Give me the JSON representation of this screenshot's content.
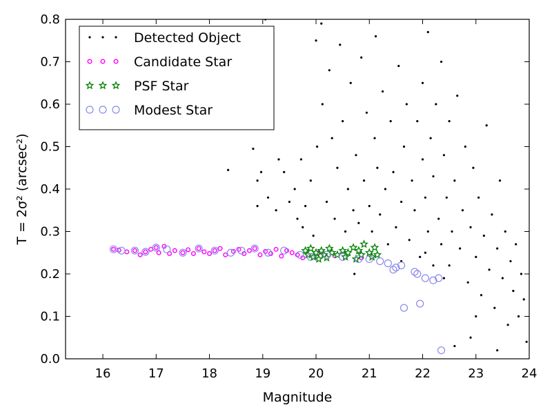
{
  "chart_data": {
    "type": "scatter",
    "title": "",
    "xlabel": "Magnitude",
    "ylabel": "T = 2σ² (arcsec²)",
    "xlim": [
      15.3,
      24.0
    ],
    "ylim": [
      0.0,
      0.8
    ],
    "x_ticks": [
      16,
      17,
      18,
      19,
      20,
      21,
      22,
      23,
      24
    ],
    "y_ticks": [
      0.0,
      0.1,
      0.2,
      0.3,
      0.4,
      0.5,
      0.6,
      0.7,
      0.8
    ],
    "grid": false,
    "legend_position": "top-left",
    "series": [
      {
        "name": "Detected Object",
        "marker": "dot",
        "color": "#000000",
        "points": [
          [
            18.35,
            0.445
          ],
          [
            18.82,
            0.495
          ],
          [
            18.9,
            0.42
          ],
          [
            18.9,
            0.36
          ],
          [
            18.97,
            0.44
          ],
          [
            19.05,
            0.8
          ],
          [
            19.1,
            0.38
          ],
          [
            19.25,
            0.35
          ],
          [
            19.3,
            0.47
          ],
          [
            19.4,
            0.44
          ],
          [
            19.5,
            0.37
          ],
          [
            19.6,
            0.4
          ],
          [
            19.65,
            0.33
          ],
          [
            19.72,
            0.47
          ],
          [
            19.75,
            0.31
          ],
          [
            19.8,
            0.36
          ],
          [
            19.9,
            0.42
          ],
          [
            19.95,
            0.29
          ],
          [
            20.0,
            0.75
          ],
          [
            20.02,
            0.5
          ],
          [
            20.1,
            0.79
          ],
          [
            20.12,
            0.6
          ],
          [
            20.2,
            0.37
          ],
          [
            20.25,
            0.68
          ],
          [
            20.3,
            0.52
          ],
          [
            20.35,
            0.33
          ],
          [
            20.4,
            0.45
          ],
          [
            20.45,
            0.74
          ],
          [
            20.5,
            0.56
          ],
          [
            20.55,
            0.3
          ],
          [
            20.6,
            0.4
          ],
          [
            20.65,
            0.65
          ],
          [
            20.7,
            0.35
          ],
          [
            20.72,
            0.2
          ],
          [
            20.75,
            0.48
          ],
          [
            20.8,
            0.32
          ],
          [
            20.85,
            0.71
          ],
          [
            20.9,
            0.42
          ],
          [
            20.95,
            0.58
          ],
          [
            21.0,
            0.36
          ],
          [
            21.05,
            0.3
          ],
          [
            21.1,
            0.52
          ],
          [
            21.12,
            0.76
          ],
          [
            21.15,
            0.45
          ],
          [
            21.2,
            0.34
          ],
          [
            21.25,
            0.63
          ],
          [
            21.3,
            0.4
          ],
          [
            21.35,
            0.27
          ],
          [
            21.4,
            0.56
          ],
          [
            21.45,
            0.44
          ],
          [
            21.5,
            0.31
          ],
          [
            21.55,
            0.69
          ],
          [
            21.6,
            0.37
          ],
          [
            21.65,
            0.5
          ],
          [
            21.7,
            0.6
          ],
          [
            21.75,
            0.28
          ],
          [
            21.8,
            0.42
          ],
          [
            21.85,
            0.35
          ],
          [
            21.9,
            0.56
          ],
          [
            21.95,
            0.24
          ],
          [
            22.0,
            0.47
          ],
          [
            22.0,
            0.65
          ],
          [
            22.05,
            0.38
          ],
          [
            22.1,
            0.3
          ],
          [
            22.1,
            0.77
          ],
          [
            22.15,
            0.52
          ],
          [
            22.2,
            0.22
          ],
          [
            22.2,
            0.43
          ],
          [
            22.25,
            0.6
          ],
          [
            22.3,
            0.33
          ],
          [
            22.35,
            0.7
          ],
          [
            22.35,
            0.27
          ],
          [
            22.4,
            0.48
          ],
          [
            22.45,
            0.38
          ],
          [
            22.5,
            0.56
          ],
          [
            22.5,
            0.22
          ],
          [
            22.55,
            0.3
          ],
          [
            22.6,
            0.42
          ],
          [
            22.65,
            0.62
          ],
          [
            22.7,
            0.26
          ],
          [
            22.75,
            0.35
          ],
          [
            22.8,
            0.5
          ],
          [
            22.85,
            0.18
          ],
          [
            22.9,
            0.31
          ],
          [
            22.95,
            0.45
          ],
          [
            23.0,
            0.24
          ],
          [
            23.05,
            0.38
          ],
          [
            23.1,
            0.15
          ],
          [
            23.15,
            0.29
          ],
          [
            23.2,
            0.55
          ],
          [
            23.25,
            0.21
          ],
          [
            23.3,
            0.34
          ],
          [
            23.35,
            0.12
          ],
          [
            23.4,
            0.26
          ],
          [
            23.45,
            0.42
          ],
          [
            23.5,
            0.19
          ],
          [
            23.55,
            0.3
          ],
          [
            23.6,
            0.08
          ],
          [
            23.65,
            0.23
          ],
          [
            23.7,
            0.16
          ],
          [
            23.75,
            0.27
          ],
          [
            23.8,
            0.1
          ],
          [
            23.85,
            0.2
          ],
          [
            23.9,
            0.14
          ],
          [
            23.95,
            0.04
          ],
          [
            22.9,
            0.05
          ],
          [
            22.6,
            0.03
          ],
          [
            23.4,
            0.02
          ],
          [
            22.05,
            0.25
          ],
          [
            21.6,
            0.23
          ],
          [
            22.4,
            0.19
          ],
          [
            23.0,
            0.1
          ]
        ]
      },
      {
        "name": "Candidate Star",
        "marker": "ring",
        "color": "#ff00ff",
        "points": [
          [
            16.2,
            0.258
          ],
          [
            16.3,
            0.256
          ],
          [
            16.45,
            0.252
          ],
          [
            16.6,
            0.255
          ],
          [
            16.7,
            0.245
          ],
          [
            16.8,
            0.252
          ],
          [
            16.9,
            0.258
          ],
          [
            17.0,
            0.262
          ],
          [
            17.05,
            0.25
          ],
          [
            17.15,
            0.265
          ],
          [
            17.25,
            0.248
          ],
          [
            17.35,
            0.255
          ],
          [
            17.5,
            0.25
          ],
          [
            17.6,
            0.257
          ],
          [
            17.7,
            0.248
          ],
          [
            17.8,
            0.26
          ],
          [
            17.9,
            0.252
          ],
          [
            18.0,
            0.248
          ],
          [
            18.1,
            0.255
          ],
          [
            18.2,
            0.26
          ],
          [
            18.3,
            0.245
          ],
          [
            18.45,
            0.253
          ],
          [
            18.55,
            0.258
          ],
          [
            18.65,
            0.248
          ],
          [
            18.75,
            0.255
          ],
          [
            18.85,
            0.26
          ],
          [
            18.95,
            0.245
          ],
          [
            19.05,
            0.253
          ],
          [
            19.15,
            0.248
          ],
          [
            19.25,
            0.258
          ],
          [
            19.35,
            0.242
          ],
          [
            19.45,
            0.255
          ],
          [
            19.55,
            0.25
          ],
          [
            19.65,
            0.245
          ],
          [
            19.75,
            0.238
          ],
          [
            20.05,
            0.25
          ],
          [
            20.35,
            0.243
          ],
          [
            20.85,
            0.238
          ]
        ]
      },
      {
        "name": "PSF Star",
        "marker": "star",
        "color": "#008000",
        "points": [
          [
            19.8,
            0.255
          ],
          [
            19.85,
            0.245
          ],
          [
            19.9,
            0.26
          ],
          [
            19.95,
            0.24
          ],
          [
            20.0,
            0.25
          ],
          [
            20.05,
            0.235
          ],
          [
            20.1,
            0.255
          ],
          [
            20.15,
            0.245
          ],
          [
            20.2,
            0.238
          ],
          [
            20.25,
            0.26
          ],
          [
            20.3,
            0.25
          ],
          [
            20.4,
            0.245
          ],
          [
            20.5,
            0.255
          ],
          [
            20.55,
            0.24
          ],
          [
            20.6,
            0.25
          ],
          [
            20.7,
            0.262
          ],
          [
            20.75,
            0.235
          ],
          [
            20.8,
            0.255
          ],
          [
            20.85,
            0.245
          ],
          [
            20.9,
            0.27
          ],
          [
            21.0,
            0.25
          ],
          [
            21.05,
            0.24
          ],
          [
            21.1,
            0.262
          ],
          [
            21.15,
            0.245
          ]
        ]
      },
      {
        "name": "Modest Star",
        "marker": "open-circle",
        "color": "#8888ee",
        "points": [
          [
            16.2,
            0.258
          ],
          [
            16.35,
            0.255
          ],
          [
            16.6,
            0.255
          ],
          [
            16.8,
            0.252
          ],
          [
            17.0,
            0.262
          ],
          [
            17.2,
            0.258
          ],
          [
            17.5,
            0.25
          ],
          [
            17.8,
            0.26
          ],
          [
            18.1,
            0.255
          ],
          [
            18.4,
            0.25
          ],
          [
            18.6,
            0.255
          ],
          [
            18.85,
            0.26
          ],
          [
            19.1,
            0.25
          ],
          [
            19.4,
            0.255
          ],
          [
            19.7,
            0.245
          ],
          [
            19.9,
            0.24
          ],
          [
            20.2,
            0.245
          ],
          [
            20.5,
            0.24
          ],
          [
            20.8,
            0.235
          ],
          [
            21.0,
            0.235
          ],
          [
            21.2,
            0.23
          ],
          [
            21.35,
            0.225
          ],
          [
            21.45,
            0.21
          ],
          [
            21.5,
            0.215
          ],
          [
            21.6,
            0.22
          ],
          [
            21.65,
            0.12
          ],
          [
            21.9,
            0.2
          ],
          [
            21.95,
            0.13
          ],
          [
            22.05,
            0.19
          ],
          [
            22.2,
            0.185
          ],
          [
            22.3,
            0.19
          ],
          [
            22.35,
            0.02
          ],
          [
            21.85,
            0.205
          ]
        ]
      }
    ]
  }
}
